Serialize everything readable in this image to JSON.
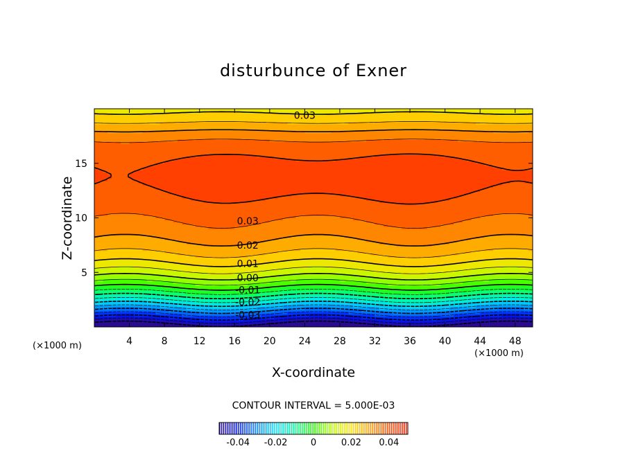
{
  "chart_data": {
    "type": "contour",
    "title": "disturbunce of Exner",
    "xlabel": "X-coordinate",
    "ylabel": "Z-coordinate",
    "x_units_left": "(×1000 m)",
    "x_units_right": "(×1000 m)",
    "xlim": [
      0,
      50
    ],
    "ylim": [
      0,
      20
    ],
    "x_ticks": [
      4,
      8,
      12,
      16,
      20,
      24,
      28,
      32,
      36,
      40,
      44,
      48
    ],
    "y_ticks": [
      5,
      10,
      15
    ],
    "contour_interval_text": "CONTOUR INTERVAL = 5.000E-03",
    "contour_interval": 0.005,
    "contour_labels": [
      {
        "text": "0.03",
        "x": 24.0,
        "z": 19.4
      },
      {
        "text": "0.03",
        "x": 17.5,
        "z": 9.7
      },
      {
        "text": "0.02",
        "x": 17.5,
        "z": 7.5
      },
      {
        "text": "0.01",
        "x": 17.5,
        "z": 5.8
      },
      {
        "text": "0.00",
        "x": 17.5,
        "z": 4.5
      },
      {
        "text": "-0.01",
        "x": 17.5,
        "z": 3.4
      },
      {
        "text": "-0.02",
        "x": 17.5,
        "z": 2.3
      },
      {
        "text": "-0.03",
        "x": 17.5,
        "z": 1.1
      }
    ],
    "colorbar": {
      "ticks": [
        "-0.04",
        "-0.02",
        "0",
        "0.02",
        "0.04"
      ],
      "tick_values": [
        -0.04,
        -0.02,
        0,
        0.02,
        0.04
      ],
      "range": [
        -0.05,
        0.05
      ]
    },
    "colormap": [
      "#2a0a90",
      "#0015ff",
      "#0080ff",
      "#00e0ff",
      "#00ff9a",
      "#22ff00",
      "#b8ff00",
      "#ffe000",
      "#ff9a00",
      "#ff4a00",
      "#ff2000"
    ]
  }
}
